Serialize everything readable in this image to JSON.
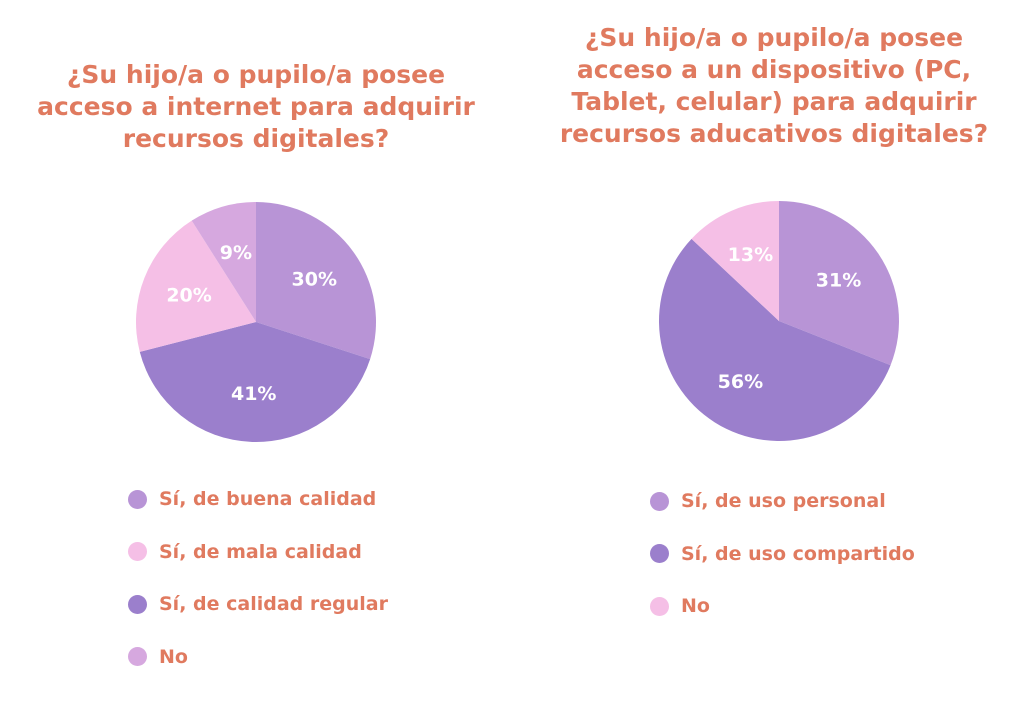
{
  "chart_data": [
    {
      "type": "pie",
      "title": "¿Su hijo/a o pupilo/a posee\nacceso a internet para adquirir\nrecursos digitales?",
      "slices": [
        {
          "label": "Sí, de buena calidad",
          "value": 30,
          "value_label": "30%",
          "color": "#B894D6"
        },
        {
          "label": "Sí, de calidad regular",
          "value": 41,
          "value_label": "41%",
          "color": "#9B7FCC"
        },
        {
          "label": "Sí, de mala calidad",
          "value": 20,
          "value_label": "20%",
          "color": "#F5BFE6"
        },
        {
          "label": "No",
          "value": 9,
          "value_label": "9%",
          "color": "#D6A8DF"
        }
      ],
      "legend": [
        {
          "label": "Sí, de buena calidad",
          "color": "#B894D6"
        },
        {
          "label": "Sí, de mala calidad",
          "color": "#F5BFE6"
        },
        {
          "label": "Sí, de calidad regular",
          "color": "#9B7FCC"
        },
        {
          "label": "No",
          "color": "#D6A8DF"
        }
      ],
      "legend_position": "bottom"
    },
    {
      "type": "pie",
      "title": "¿Su hijo/a o pupilo/a posee\nacceso a un dispositivo (PC,\nTablet, celular) para adquirir\nrecursos aducativos digitales?",
      "slices": [
        {
          "label": "Sí, de uso personal",
          "value": 31,
          "value_label": "31%",
          "color": "#B894D6"
        },
        {
          "label": "Sí, de uso compartido",
          "value": 56,
          "value_label": "56%",
          "color": "#9B7FCC"
        },
        {
          "label": "No",
          "value": 13,
          "value_label": "13%",
          "color": "#F5BFE6"
        }
      ],
      "legend": [
        {
          "label": "Sí, de uso personal",
          "color": "#B894D6"
        },
        {
          "label": "Sí, de uso compartido",
          "color": "#9B7FCC"
        },
        {
          "label": "No",
          "color": "#F5BFE6"
        }
      ],
      "legend_position": "bottom"
    }
  ]
}
